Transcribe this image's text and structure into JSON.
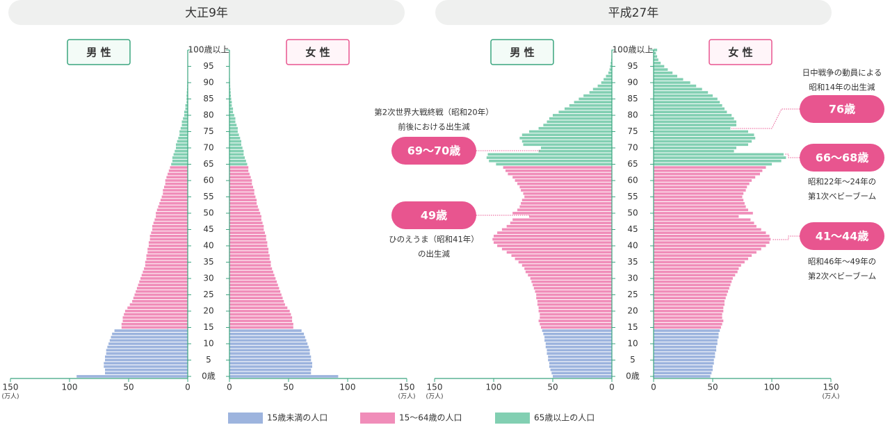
{
  "chart_data": [
    {
      "type": "pyramid",
      "title": "大正9年",
      "left_label": "男 性",
      "right_label": "女 性",
      "unit": "(万人)",
      "xlim": [
        0,
        150
      ],
      "xticks": [
        0,
        50,
        100,
        150
      ],
      "age_ticks": [
        {
          "value": 0,
          "label": "0歳"
        },
        5,
        10,
        15,
        20,
        25,
        30,
        35,
        40,
        45,
        50,
        55,
        60,
        65,
        70,
        75,
        80,
        85,
        90,
        95,
        {
          "value": 100,
          "label": "100歳以上"
        }
      ],
      "male": [
        94,
        70,
        70,
        71,
        71,
        70,
        70,
        69,
        69,
        68,
        67,
        66,
        65,
        64,
        62,
        56,
        56,
        55,
        55,
        54,
        53,
        51,
        49,
        47,
        46,
        45,
        44,
        43,
        42,
        41,
        40,
        39,
        38,
        37,
        36,
        36,
        35,
        35,
        34,
        34,
        33,
        33,
        32,
        32,
        31,
        30,
        30,
        29,
        28,
        27,
        27,
        26,
        25,
        24,
        23,
        22,
        21,
        21,
        20,
        19,
        19,
        18,
        17,
        16,
        15,
        14,
        13,
        13,
        12,
        11,
        10,
        10,
        9,
        8,
        7,
        7,
        6,
        5,
        5,
        4,
        3,
        3,
        2,
        2,
        1,
        1,
        1,
        0.8,
        0.6,
        0.5,
        0.4,
        0.3,
        0.2,
        0.2,
        0.1,
        0.1,
        0,
        0,
        0,
        0,
        0
      ],
      "female": [
        92,
        69,
        69,
        70,
        70,
        69,
        69,
        68,
        68,
        67,
        66,
        65,
        64,
        63,
        61,
        54,
        54,
        53,
        53,
        52,
        51,
        49,
        47,
        46,
        45,
        44,
        43,
        42,
        41,
        40,
        39,
        38,
        37,
        36,
        35,
        35,
        34,
        34,
        33,
        33,
        32,
        32,
        31,
        31,
        30,
        29,
        29,
        28,
        27,
        27,
        26,
        25,
        24,
        23,
        23,
        22,
        21,
        21,
        20,
        19,
        19,
        18,
        17,
        16,
        16,
        15,
        14,
        13,
        12,
        12,
        11,
        10,
        10,
        9,
        8,
        7,
        7,
        6,
        5,
        5,
        4,
        3,
        3,
        2,
        2,
        1.5,
        1.2,
        1,
        0.8,
        0.6,
        0.5,
        0.4,
        0.3,
        0.2,
        0.1,
        0.1,
        0.1,
        0,
        0,
        0,
        0
      ],
      "annotations": []
    },
    {
      "type": "pyramid",
      "title": "平成27年",
      "left_label": "男 性",
      "right_label": "女 性",
      "unit": "(万人)",
      "xlim": [
        0,
        150
      ],
      "xticks": [
        0,
        50,
        100,
        150
      ],
      "age_ticks": [
        {
          "value": 0,
          "label": "0歳"
        },
        5,
        10,
        15,
        20,
        25,
        30,
        35,
        40,
        45,
        50,
        55,
        60,
        65,
        70,
        75,
        80,
        85,
        90,
        95,
        {
          "value": 100,
          "label": "100歳以上"
        }
      ],
      "male": [
        50,
        51,
        52,
        53,
        53,
        54,
        54,
        55,
        55,
        56,
        56,
        57,
        57,
        58,
        59,
        60,
        61,
        62,
        61,
        61,
        62,
        62,
        63,
        63,
        64,
        64,
        65,
        66,
        67,
        68,
        69,
        71,
        73,
        74,
        76,
        79,
        82,
        85,
        89,
        93,
        97,
        100,
        101,
        100,
        97,
        93,
        89,
        86,
        84,
        70,
        84,
        80,
        78,
        77,
        76,
        74,
        75,
        77,
        78,
        80,
        82,
        84,
        88,
        90,
        92,
        98,
        104,
        106,
        105,
        62,
        60,
        75,
        76,
        78,
        76,
        70,
        62,
        58,
        55,
        53,
        50,
        45,
        40,
        36,
        32,
        28,
        24,
        19,
        16,
        12,
        9,
        7,
        5,
        3,
        2,
        1.5,
        1,
        0.6,
        0.4,
        0.2,
        0.2
      ],
      "female": [
        48,
        49,
        50,
        50,
        51,
        51,
        52,
        52,
        53,
        53,
        54,
        54,
        55,
        55,
        56,
        57,
        58,
        59,
        58,
        58,
        59,
        59,
        60,
        60,
        61,
        62,
        63,
        64,
        65,
        66,
        67,
        69,
        71,
        72,
        74,
        77,
        80,
        83,
        87,
        91,
        95,
        98,
        99,
        98,
        95,
        91,
        87,
        85,
        82,
        72,
        84,
        80,
        78,
        77,
        76,
        75,
        76,
        78,
        79,
        81,
        83,
        86,
        90,
        92,
        95,
        100,
        108,
        112,
        110,
        68,
        70,
        80,
        83,
        86,
        85,
        80,
        65,
        70,
        70,
        68,
        66,
        62,
        60,
        58,
        56,
        54,
        50,
        46,
        41,
        36,
        31,
        25,
        20,
        16,
        12,
        9,
        6,
        4,
        3,
        2,
        3
      ],
      "annotations": [
        {
          "label": "69～70歳",
          "note": [
            "第2次世界大戦終戦（昭和20年）",
            "前後における出生減"
          ]
        },
        {
          "label": "49歳",
          "note": [
            "ひのえうま（昭和41年）",
            "の出生減"
          ]
        },
        {
          "label": "76歳",
          "note": [
            "日中戦争の動員による",
            "昭和14年の出生減"
          ]
        },
        {
          "label": "66～68歳",
          "note": [
            "昭和22年～24年の",
            "第1次ベビーブーム"
          ]
        },
        {
          "label": "41～44歳",
          "note": [
            "昭和46年～49年の",
            "第2次ベビーブーム"
          ]
        }
      ]
    }
  ],
  "legend": [
    {
      "name": "15歳未満の人口",
      "color": "#9db4de",
      "from_age": 0
    },
    {
      "name": "15～64歳の人口",
      "color": "#f08db9",
      "from_age": 15
    },
    {
      "name": "65歳以上の人口",
      "color": "#82cfb2",
      "from_age": 65
    }
  ]
}
